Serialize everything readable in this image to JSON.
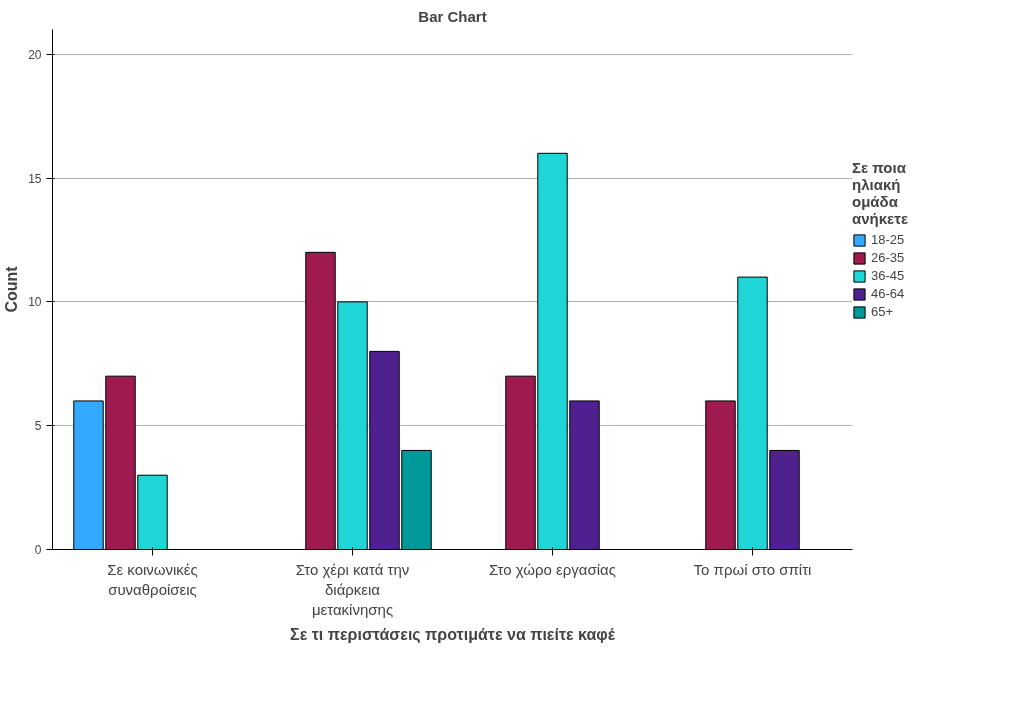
{
  "chart_data": {
    "type": "bar",
    "title": "Bar Chart",
    "xlabel": "Σε τι περιστάσεις προτιμάτε να πιείτε καφέ",
    "ylabel": "Count",
    "legend_title": "Σε ποια ηλιακή ομάδα ανήκετε",
    "categories": [
      "Σε κοινωνικές συναθροίσεις",
      "Στο χέρι κατά την διάρκεια μετακίνησης",
      "Στο χώρο εργασίας",
      "Το πρωί στο σπίτι"
    ],
    "series": [
      {
        "name": "18-25",
        "color": "#33aaff",
        "values": [
          6,
          null,
          null,
          null
        ]
      },
      {
        "name": "26-35",
        "color": "#9e1a4f",
        "values": [
          7,
          12,
          7,
          6
        ]
      },
      {
        "name": "36-45",
        "color": "#1fd6d6",
        "values": [
          3,
          10,
          16,
          11
        ]
      },
      {
        "name": "46-64",
        "color": "#4f2190",
        "values": [
          null,
          8,
          6,
          4
        ]
      },
      {
        "name": "65+",
        "color": "#00999a",
        "values": [
          null,
          4,
          null,
          null
        ]
      }
    ],
    "ylim": [
      0,
      21
    ],
    "yticks": [
      0,
      5,
      10,
      15,
      20
    ],
    "grid": "y",
    "legend": "right"
  }
}
